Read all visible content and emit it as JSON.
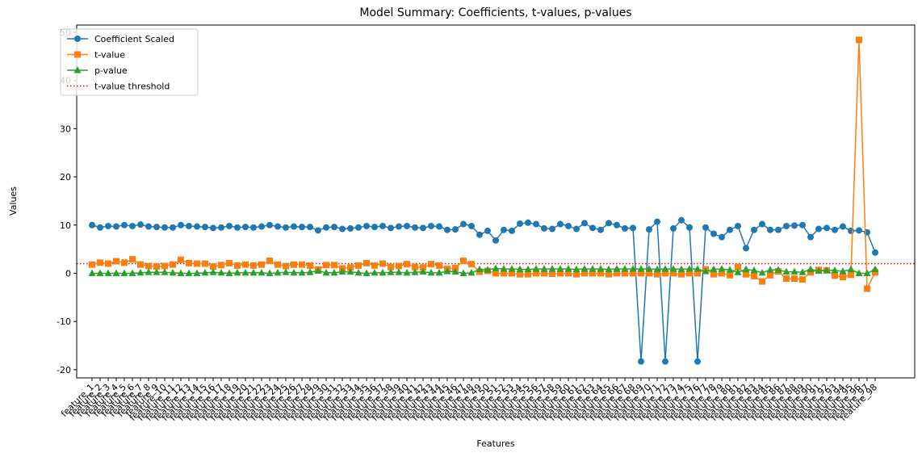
{
  "chart_data": {
    "type": "line",
    "title": "Model Summary: Coefficients, t-values, p-values",
    "x_label": "Features",
    "y_label": "Values",
    "categories": [
      "feature_1",
      "feature_2",
      "feature_3",
      "feature_4",
      "feature_5",
      "feature_6",
      "feature_7",
      "feature_8",
      "feature_9",
      "feature_10",
      "feature_11",
      "feature_12",
      "feature_13",
      "feature_14",
      "feature_15",
      "feature_16",
      "feature_17",
      "feature_18",
      "feature_19",
      "feature_20",
      "feature_21",
      "feature_22",
      "feature_23",
      "feature_24",
      "feature_25",
      "feature_26",
      "feature_27",
      "feature_28",
      "feature_29",
      "feature_30",
      "feature_31",
      "feature_32",
      "feature_33",
      "feature_34",
      "feature_35",
      "feature_36",
      "feature_37",
      "feature_38",
      "feature_39",
      "feature_40",
      "feature_41",
      "feature_42",
      "feature_43",
      "feature_44",
      "feature_45",
      "feature_46",
      "feature_47",
      "feature_48",
      "feature_49",
      "feature_50",
      "feature_51",
      "feature_52",
      "feature_53",
      "feature_54",
      "feature_55",
      "feature_56",
      "feature_57",
      "feature_58",
      "feature_59",
      "feature_60",
      "feature_61",
      "feature_62",
      "feature_63",
      "feature_64",
      "feature_65",
      "feature_66",
      "feature_67",
      "feature_68",
      "feature_69",
      "feature_70",
      "feature_71",
      "feature_72",
      "feature_73",
      "feature_74",
      "feature_75",
      "feature_76",
      "feature_77",
      "feature_78",
      "feature_79",
      "feature_80",
      "feature_81",
      "feature_82",
      "feature_83",
      "feature_84",
      "feature_85",
      "feature_86",
      "feature_87",
      "feature_88",
      "feature_89",
      "feature_90",
      "feature_91",
      "feature_92",
      "feature_93",
      "feature_94",
      "feature_95",
      "feature_96",
      "feature_97",
      "feature_98"
    ],
    "series": [
      {
        "name": "Coefficient Scaled",
        "color": "#1f77b4",
        "marker": "circle",
        "values": [
          10.0,
          9.5,
          9.8,
          9.7,
          10.0,
          9.8,
          10.1,
          9.7,
          9.6,
          9.5,
          9.5,
          10.0,
          9.8,
          9.7,
          9.6,
          9.4,
          9.5,
          9.8,
          9.5,
          9.6,
          9.5,
          9.7,
          10.0,
          9.7,
          9.5,
          9.7,
          9.6,
          9.6,
          8.9,
          9.5,
          9.6,
          9.2,
          9.3,
          9.5,
          9.8,
          9.6,
          9.8,
          9.4,
          9.7,
          9.8,
          9.5,
          9.4,
          9.8,
          9.7,
          9.0,
          9.1,
          10.2,
          9.8,
          8.0,
          8.8,
          6.8,
          9.0,
          8.8,
          10.3,
          10.5,
          10.2,
          9.3,
          9.2,
          10.2,
          9.8,
          9.2,
          10.4,
          9.4,
          9.0,
          10.4,
          10.0,
          9.3,
          9.4,
          -18.3,
          9.1,
          10.7,
          -18.3,
          9.3,
          11.0,
          9.5,
          -18.3,
          9.5,
          8.2,
          7.5,
          9.0,
          9.8,
          5.2,
          9.0,
          10.2,
          9.0,
          9.0,
          9.8,
          9.9,
          10.0,
          7.5,
          9.2,
          9.4,
          9.0,
          9.7,
          8.8,
          8.9,
          8.5,
          4.3
        ]
      },
      {
        "name": "t-value",
        "color": "#ff7f0e",
        "marker": "square",
        "values": [
          1.8,
          2.2,
          2.0,
          2.5,
          2.2,
          2.9,
          1.8,
          1.5,
          1.4,
          1.5,
          1.8,
          2.8,
          2.1,
          2.0,
          2.0,
          1.4,
          1.7,
          2.1,
          1.6,
          1.8,
          1.6,
          1.8,
          2.6,
          1.8,
          1.5,
          1.8,
          1.8,
          1.6,
          0.8,
          1.7,
          1.7,
          1.0,
          1.2,
          1.6,
          2.1,
          1.6,
          2.0,
          1.3,
          1.5,
          1.9,
          1.3,
          1.2,
          1.9,
          1.6,
          0.9,
          1.1,
          2.6,
          1.9,
          0.3,
          0.5,
          0.0,
          0.0,
          0.0,
          -0.2,
          -0.2,
          0.0,
          0.0,
          -0.1,
          0.0,
          0.0,
          -0.2,
          0.0,
          0.0,
          0.0,
          -0.2,
          0.0,
          0.0,
          0.0,
          0.0,
          0.0,
          -0.2,
          0.0,
          0.0,
          -0.2,
          0.0,
          0.0,
          0.8,
          -0.2,
          0.0,
          -0.4,
          1.3,
          -0.2,
          -0.6,
          -1.7,
          -0.4,
          0.4,
          -1.1,
          -1.1,
          -1.3,
          0.2,
          0.7,
          0.6,
          -0.5,
          -0.8,
          -0.3,
          48.4,
          -3.2,
          0.2
        ]
      },
      {
        "name": "p-value",
        "color": "#2ca02c",
        "marker": "triangle",
        "values": [
          0.0,
          0.0,
          0.0,
          0.0,
          0.0,
          0.0,
          0.1,
          0.2,
          0.2,
          0.2,
          0.1,
          0.0,
          0.0,
          0.0,
          0.1,
          0.2,
          0.1,
          0.0,
          0.1,
          0.1,
          0.1,
          0.1,
          0.0,
          0.1,
          0.2,
          0.1,
          0.1,
          0.2,
          0.5,
          0.1,
          0.1,
          0.3,
          0.3,
          0.1,
          0.0,
          0.1,
          0.1,
          0.2,
          0.2,
          0.1,
          0.2,
          0.3,
          0.1,
          0.1,
          0.4,
          0.3,
          0.0,
          0.1,
          0.8,
          0.7,
          1.0,
          0.9,
          0.9,
          0.8,
          0.8,
          0.9,
          0.9,
          0.9,
          0.9,
          0.9,
          0.8,
          0.9,
          0.9,
          0.9,
          0.8,
          0.9,
          0.9,
          0.9,
          0.9,
          0.9,
          0.8,
          0.9,
          0.9,
          0.8,
          0.9,
          0.9,
          0.4,
          0.8,
          0.9,
          0.7,
          0.2,
          0.8,
          0.6,
          0.1,
          0.7,
          0.7,
          0.3,
          0.3,
          0.2,
          0.8,
          0.5,
          0.6,
          0.6,
          0.4,
          0.8,
          0.0,
          0.0,
          0.8
        ]
      }
    ],
    "threshold": {
      "name": "t-value threshold",
      "value": 2,
      "color": "#ff0000"
    },
    "ylim": [
      -21.7,
      51.5
    ],
    "yticks": [
      -20,
      -10,
      0,
      10,
      20,
      30,
      40,
      50
    ],
    "legend": "upper left"
  }
}
